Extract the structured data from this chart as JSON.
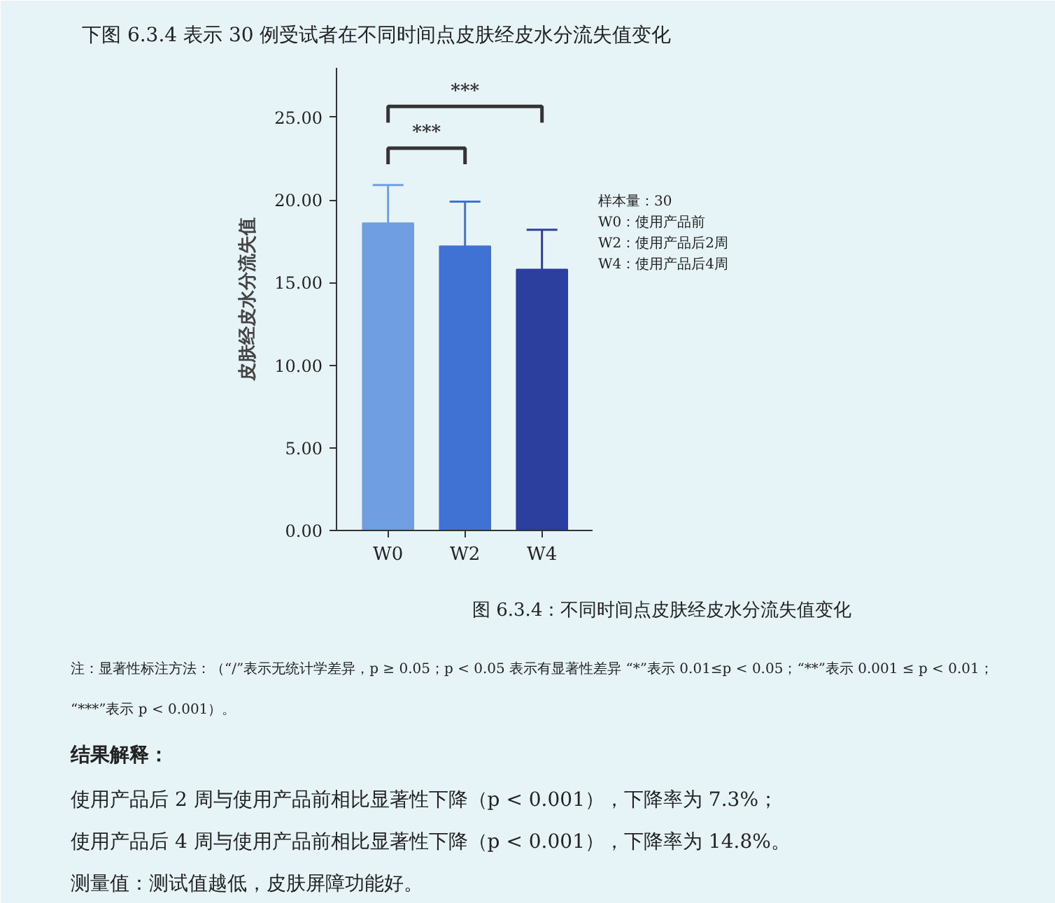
{
  "chart_data": {
    "type": "bar",
    "title": "下图 6.3.4 表示 30 例受试者在不同时间点皮肤经皮水分流失值变化",
    "ylabel": "皮肤经皮水分流失值",
    "categories": [
      "W0",
      "W2",
      "W4"
    ],
    "values": [
      18.6,
      17.2,
      15.8
    ],
    "errors": [
      2.3,
      2.7,
      2.4
    ],
    "colors": [
      "#6f9fe2",
      "#3f72d2",
      "#2c3f9e"
    ],
    "ylim": [
      0,
      28
    ],
    "yticks": [
      {
        "value": 0,
        "label": "0.00"
      },
      {
        "value": 5,
        "label": "5.00"
      },
      {
        "value": 10,
        "label": "10.00"
      },
      {
        "value": 15,
        "label": "15.00"
      },
      {
        "value": 20,
        "label": "20.00"
      },
      {
        "value": 25,
        "label": "25.00"
      }
    ],
    "grid": false,
    "annotations": [
      "***",
      "***",
      "样本量：30",
      "W0：使用产品前",
      "W2：使用产品后2周",
      "W4：使用产品后4周",
      "图 6.3.4：不同时间点皮肤经皮水分流失值变化",
      "注：显著性标注方法：（“/”表示无统计学差异，p ≥ 0.05；p < 0.05 表示有显著性差异 “*”表示 0.01≤p < 0.05；“**”表示 0.001 ≤ p < 0.01；",
      "“***”表示 p < 0.001）。",
      "结果解释：",
      "使用产品后 2 周与使用产品前相比显著性下降（p < 0.001），下降率为 7.3%；",
      "使用产品后 4 周与使用产品前相比显著性下降（p < 0.001），下降率为 14.8%。",
      "测量值：测试值越低，皮肤屏障功能好。"
    ]
  }
}
